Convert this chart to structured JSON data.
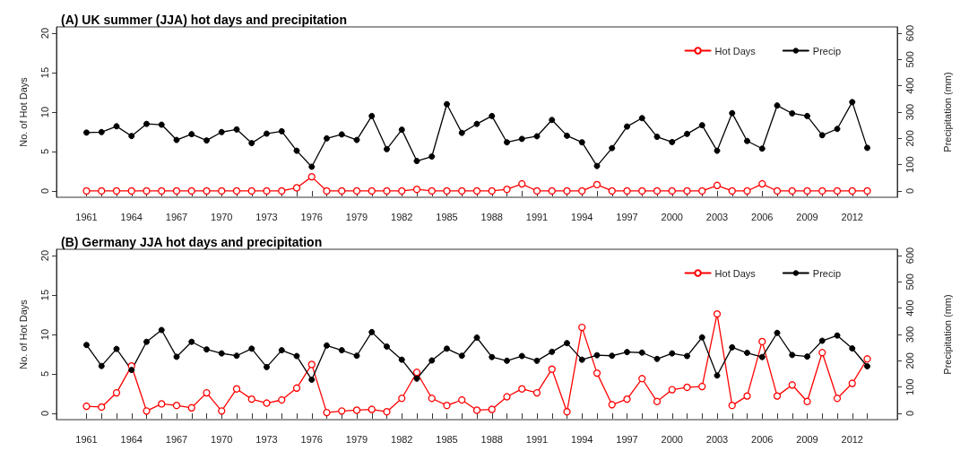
{
  "chart_data": [
    {
      "type": "line",
      "title": "(A) UK summer (JJA) hot days and precipitation",
      "ylabel": "No. of Hot Days",
      "y2label": "Precipitation (mm)",
      "x": [
        1961,
        1962,
        1963,
        1964,
        1965,
        1966,
        1967,
        1968,
        1969,
        1970,
        1971,
        1972,
        1973,
        1974,
        1975,
        1976,
        1977,
        1978,
        1979,
        1980,
        1981,
        1982,
        1983,
        1984,
        1985,
        1986,
        1987,
        1988,
        1989,
        1990,
        1991,
        1992,
        1993,
        1994,
        1995,
        1996,
        1997,
        1998,
        1999,
        2000,
        2001,
        2002,
        2003,
        2004,
        2005,
        2006,
        2007,
        2008,
        2009,
        2010,
        2011,
        2012,
        2013
      ],
      "series": [
        {
          "name": "Hot Days",
          "color": "#ff0000",
          "values": [
            0,
            0,
            0,
            0,
            0,
            0,
            0,
            0,
            0,
            0,
            0,
            0,
            0,
            0,
            0.4,
            1.8,
            0,
            0,
            0,
            0,
            0,
            0,
            0.2,
            0,
            0,
            0,
            0,
            0,
            0.2,
            0.9,
            0,
            0,
            0,
            0,
            0.8,
            0,
            0,
            0,
            0,
            0,
            0,
            0,
            0.7,
            0,
            0,
            0.9,
            0,
            0,
            0,
            0,
            0,
            0,
            0
          ]
        },
        {
          "name": "Precip",
          "color": "#000000",
          "axis": "y2",
          "values": [
            222,
            224,
            246,
            209,
            255,
            252,
            194,
            216,
            192,
            224,
            234,
            182,
            218,
            227,
            153,
            92,
            200,
            215,
            194,
            285,
            159,
            233,
            114,
            131,
            330,
            221,
            255,
            285,
            185,
            198,
            208,
            270,
            210,
            185,
            95,
            163,
            245,
            277,
            206,
            186,
            217,
            250,
            153,
            296,
            190,
            161,
            325,
            295,
            285,
            212,
            236,
            338,
            164
          ]
        }
      ],
      "xlim": [
        1959,
        2015
      ],
      "xticks": [
        1961,
        {
          "value": 1962,
          "label": null
        },
        {
          "value": 1963,
          "label": null
        },
        1964,
        {
          "value": 1965,
          "label": null
        },
        {
          "value": 1966,
          "label": null
        },
        1967,
        {
          "value": 1968,
          "label": null
        },
        {
          "value": 1969,
          "label": null
        },
        1970,
        {
          "value": 1971,
          "label": null
        },
        {
          "value": 1972,
          "label": null
        },
        1973,
        {
          "value": 1974,
          "label": null
        },
        {
          "value": 1975,
          "label": null
        },
        1976,
        {
          "value": 1977,
          "label": null
        },
        {
          "value": 1978,
          "label": null
        },
        1979,
        {
          "value": 1980,
          "label": null
        },
        {
          "value": 1981,
          "label": null
        },
        1982,
        {
          "value": 1983,
          "label": null
        },
        {
          "value": 1984,
          "label": null
        },
        1985,
        {
          "value": 1986,
          "label": null
        },
        {
          "value": 1987,
          "label": null
        },
        1988,
        {
          "value": 1989,
          "label": null
        },
        {
          "value": 1990,
          "label": null
        },
        1991,
        {
          "value": 1992,
          "label": null
        },
        {
          "value": 1993,
          "label": null
        },
        1994,
        {
          "value": 1995,
          "label": null
        },
        {
          "value": 1996,
          "label": null
        },
        1997,
        {
          "value": 1998,
          "label": null
        },
        {
          "value": 1999,
          "label": null
        },
        2000,
        {
          "value": 2001,
          "label": null
        },
        {
          "value": 2002,
          "label": null
        },
        2003,
        {
          "value": 2004,
          "label": null
        },
        {
          "value": 2005,
          "label": null
        },
        2006,
        {
          "value": 2007,
          "label": null
        },
        {
          "value": 2008,
          "label": null
        },
        2009,
        {
          "value": 2010,
          "label": null
        },
        {
          "value": 2011,
          "label": null
        },
        2012,
        {
          "value": 2013,
          "label": null
        }
      ],
      "ylim": [
        -0.8,
        20.8
      ],
      "yticks": [
        0,
        5,
        10,
        15,
        20
      ],
      "y2lim": [
        -24,
        624
      ],
      "y2ticks": [
        0,
        100,
        200,
        300,
        400,
        500,
        600
      ],
      "grid": false,
      "legend": "top right",
      "marker": "circle",
      "line_style": "solid"
    },
    {
      "type": "line",
      "title": "(B) Germany JJA hot days and precipitation",
      "ylabel": "No. of Hot Days",
      "y2label": "Precipitation (mm)",
      "x": [
        1961,
        1962,
        1963,
        1964,
        1965,
        1966,
        1967,
        1968,
        1969,
        1970,
        1971,
        1972,
        1973,
        1974,
        1975,
        1976,
        1977,
        1978,
        1979,
        1980,
        1981,
        1982,
        1983,
        1984,
        1985,
        1986,
        1987,
        1988,
        1989,
        1990,
        1991,
        1992,
        1993,
        1994,
        1995,
        1996,
        1997,
        1998,
        1999,
        2000,
        2001,
        2002,
        2003,
        2004,
        2005,
        2006,
        2007,
        2008,
        2009,
        2010,
        2011,
        2012,
        2013
      ],
      "series": [
        {
          "name": "Hot Days",
          "color": "#ff0000",
          "values": [
            0.9,
            0.8,
            2.6,
            6.0,
            0.3,
            1.2,
            1.0,
            0.7,
            2.6,
            0.3,
            3.1,
            1.8,
            1.3,
            1.7,
            3.2,
            6.2,
            0.1,
            0.3,
            0.4,
            0.5,
            0.2,
            1.9,
            5.2,
            1.9,
            1.0,
            1.7,
            0.4,
            0.5,
            2.1,
            3.1,
            2.6,
            5.6,
            0.2,
            10.9,
            5.1,
            1.1,
            1.8,
            4.4,
            1.5,
            3.0,
            3.3,
            3.4,
            12.6,
            1.0,
            2.2,
            9.1,
            2.2,
            3.6,
            1.5,
            7.7,
            1.9,
            3.8,
            6.9
          ]
        },
        {
          "name": "Precip",
          "color": "#000000",
          "axis": "y2",
          "values": [
            260,
            180,
            245,
            165,
            272,
            317,
            215,
            272,
            243,
            228,
            219,
            246,
            176,
            240,
            218,
            128,
            258,
            240,
            219,
            309,
            254,
            204,
            132,
            201,
            246,
            219,
            288,
            214,
            200,
            218,
            200,
            234,
            267,
            204,
            221,
            219,
            233,
            231,
            207,
            228,
            218,
            289,
            144,
            251,
            230,
            214,
            306,
            222,
            216,
            276,
            296,
            247,
            179
          ]
        }
      ],
      "xlim": [
        1959,
        2015
      ],
      "xticks": [
        1961,
        {
          "value": 1962,
          "label": null
        },
        {
          "value": 1963,
          "label": null
        },
        1964,
        {
          "value": 1965,
          "label": null
        },
        {
          "value": 1966,
          "label": null
        },
        1967,
        {
          "value": 1968,
          "label": null
        },
        {
          "value": 1969,
          "label": null
        },
        1970,
        {
          "value": 1971,
          "label": null
        },
        {
          "value": 1972,
          "label": null
        },
        1973,
        {
          "value": 1974,
          "label": null
        },
        {
          "value": 1975,
          "label": null
        },
        1976,
        {
          "value": 1977,
          "label": null
        },
        {
          "value": 1978,
          "label": null
        },
        1979,
        {
          "value": 1980,
          "label": null
        },
        {
          "value": 1981,
          "label": null
        },
        1982,
        {
          "value": 1983,
          "label": null
        },
        {
          "value": 1984,
          "label": null
        },
        1985,
        {
          "value": 1986,
          "label": null
        },
        {
          "value": 1987,
          "label": null
        },
        1988,
        {
          "value": 1989,
          "label": null
        },
        {
          "value": 1990,
          "label": null
        },
        1991,
        {
          "value": 1992,
          "label": null
        },
        {
          "value": 1993,
          "label": null
        },
        1994,
        {
          "value": 1995,
          "label": null
        },
        {
          "value": 1996,
          "label": null
        },
        1997,
        {
          "value": 1998,
          "label": null
        },
        {
          "value": 1999,
          "label": null
        },
        2000,
        {
          "value": 2001,
          "label": null
        },
        {
          "value": 2002,
          "label": null
        },
        2003,
        {
          "value": 2004,
          "label": null
        },
        {
          "value": 2005,
          "label": null
        },
        2006,
        {
          "value": 2007,
          "label": null
        },
        {
          "value": 2008,
          "label": null
        },
        2009,
        {
          "value": 2010,
          "label": null
        },
        {
          "value": 2011,
          "label": null
        },
        2012,
        {
          "value": 2013,
          "label": null
        }
      ],
      "ylim": [
        -0.8,
        20.8
      ],
      "yticks": [
        0,
        5,
        10,
        15,
        20
      ],
      "y2lim": [
        -24,
        624
      ],
      "y2ticks": [
        0,
        100,
        200,
        300,
        400,
        500,
        600
      ],
      "grid": false,
      "legend": "top right",
      "marker": "circle",
      "line_style": "solid"
    }
  ]
}
